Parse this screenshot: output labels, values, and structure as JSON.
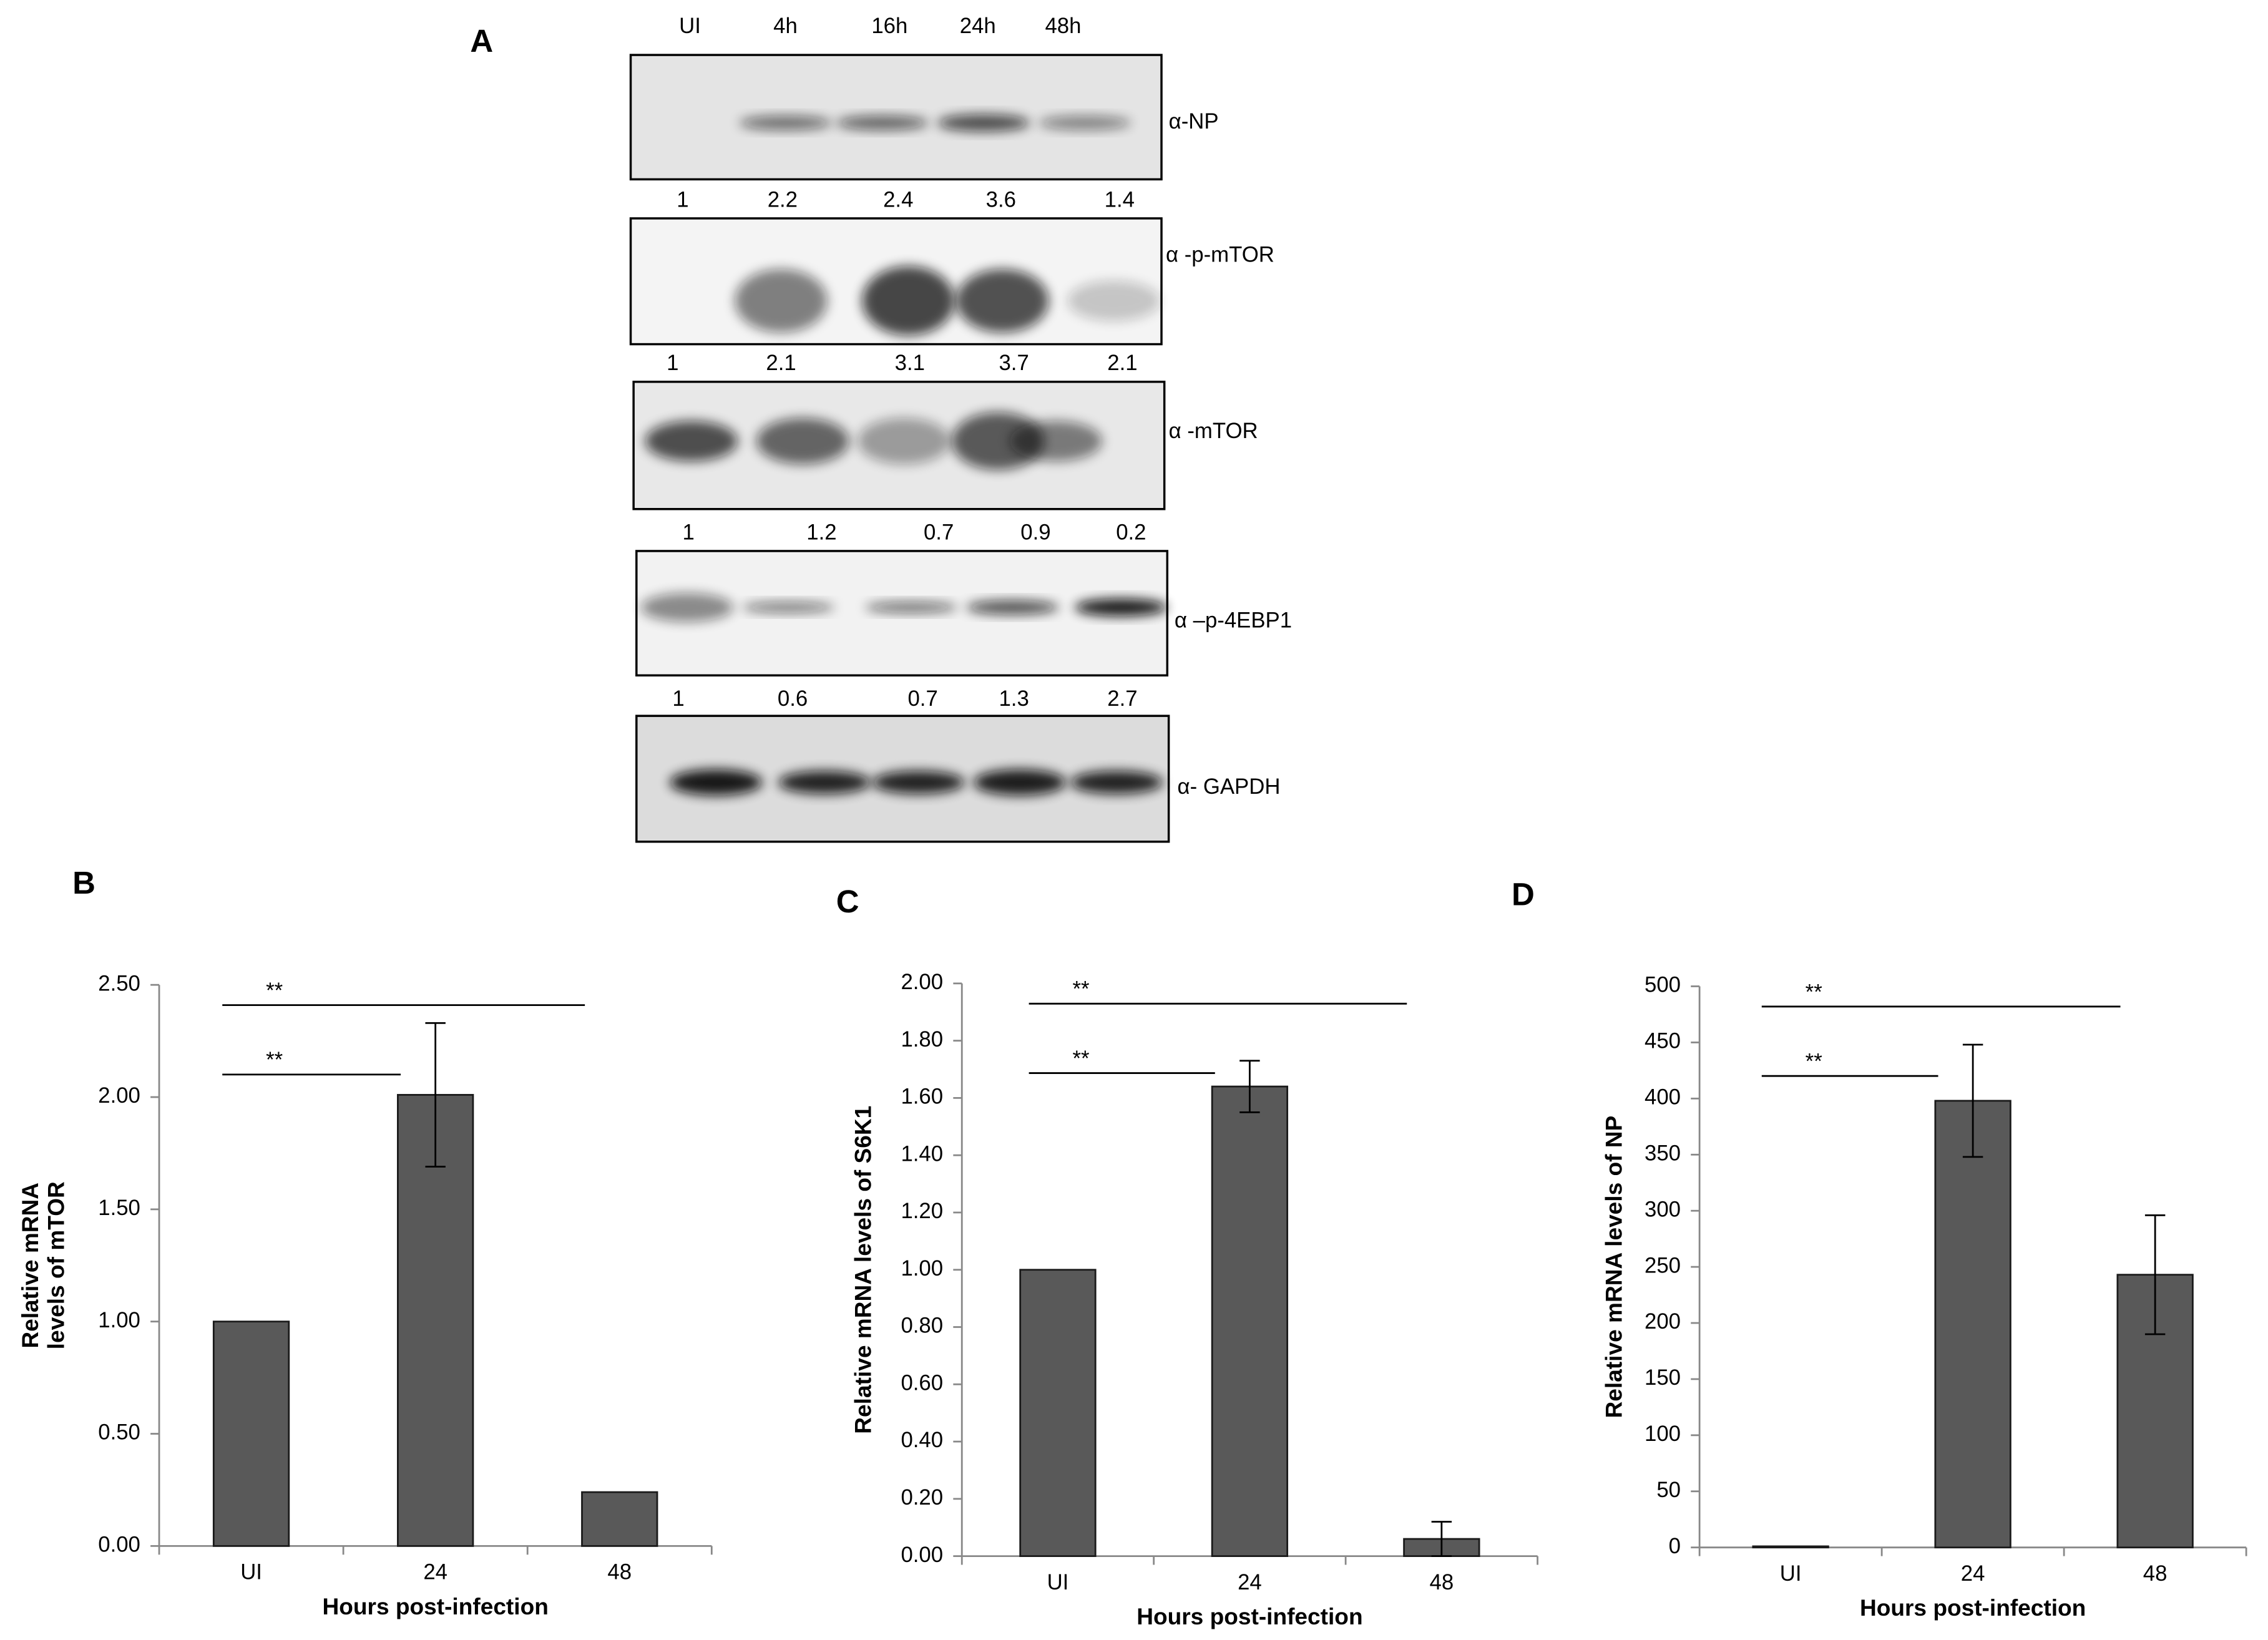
{
  "blot": {
    "panel": "A",
    "lanes": [
      "UI",
      "4h",
      "16h",
      "24h",
      "48h"
    ],
    "strips": [
      {
        "label": "α-NP",
        "quant": [
          1,
          2.2,
          2.4,
          3.6,
          1.4
        ]
      },
      {
        "label": "α -p-mTOR",
        "quant": [
          1,
          2.1,
          3.1,
          3.7,
          2.1
        ]
      },
      {
        "label": "α -mTOR",
        "quant": [
          1,
          1.2,
          0.7,
          0.9,
          0.2
        ]
      },
      {
        "label": "α –p-4EBP1",
        "quant": [
          1,
          0.6,
          0.7,
          1.3,
          2.7
        ]
      },
      {
        "label": "α- GAPDH"
      }
    ]
  },
  "chart_data": [
    {
      "type": "bar",
      "panel": "B",
      "ylabel": [
        "Relative mRNA",
        "levels of mTOR"
      ],
      "xlabel": "Hours post-infection",
      "categories": [
        "UI",
        "24",
        "48"
      ],
      "values": [
        1,
        2.01,
        0.24
      ],
      "errors": [
        null,
        0.32,
        null
      ],
      "color": "#595959",
      "ylim": [
        0,
        2.5
      ],
      "yticks": [
        {
          "value": 0,
          "label": "0.00"
        },
        {
          "value": 0.5,
          "label": "0.50"
        },
        {
          "value": 1,
          "label": "1.00"
        },
        {
          "value": 1.5,
          "label": "1.50"
        },
        {
          "value": 2,
          "label": "2.00"
        },
        {
          "value": 2.5,
          "label": "2.50"
        }
      ],
      "annotations": [
        {
          "text": "**",
          "from": "UI",
          "to": "48"
        },
        {
          "text": "**",
          "from": "UI",
          "to": "24"
        }
      ]
    },
    {
      "type": "bar",
      "panel": "C",
      "ylabel": [
        "Relative mRNA levels of S6K1"
      ],
      "xlabel": "Hours post-infection",
      "categories": [
        "UI",
        "24",
        "48"
      ],
      "values": [
        1,
        1.64,
        0.06
      ],
      "errors": [
        null,
        0.09,
        0.06
      ],
      "color": "#595959",
      "ylim": [
        0,
        2
      ],
      "yticks": [
        {
          "value": 0,
          "label": "0.00"
        },
        {
          "value": 0.2,
          "label": "0.20"
        },
        {
          "value": 0.4,
          "label": "0.40"
        },
        {
          "value": 0.6,
          "label": "0.60"
        },
        {
          "value": 0.8,
          "label": "0.80"
        },
        {
          "value": 1,
          "label": "1.00"
        },
        {
          "value": 1.2,
          "label": "1.20"
        },
        {
          "value": 1.4,
          "label": "1.40"
        },
        {
          "value": 1.6,
          "label": "1.60"
        },
        {
          "value": 1.8,
          "label": "1.80"
        },
        {
          "value": 2,
          "label": "2.00"
        }
      ],
      "annotations": [
        {
          "text": "**",
          "from": "UI",
          "to": "48"
        },
        {
          "text": "**",
          "from": "UI",
          "to": "24"
        }
      ]
    },
    {
      "type": "bar",
      "panel": "D",
      "ylabel": [
        "Relative mRNA levels of NP"
      ],
      "xlabel": "Hours post-infection",
      "categories": [
        "UI",
        "24",
        "48"
      ],
      "values": [
        1,
        398,
        243
      ],
      "errors": [
        null,
        50,
        53
      ],
      "color": "#595959",
      "ylim": [
        0,
        500
      ],
      "yticks": [
        0,
        50,
        100,
        150,
        200,
        250,
        300,
        350,
        400,
        450,
        500
      ],
      "annotations": [
        {
          "text": "**",
          "from": "UI",
          "to": "48"
        },
        {
          "text": "**",
          "from": "UI",
          "to": "24"
        }
      ]
    }
  ]
}
